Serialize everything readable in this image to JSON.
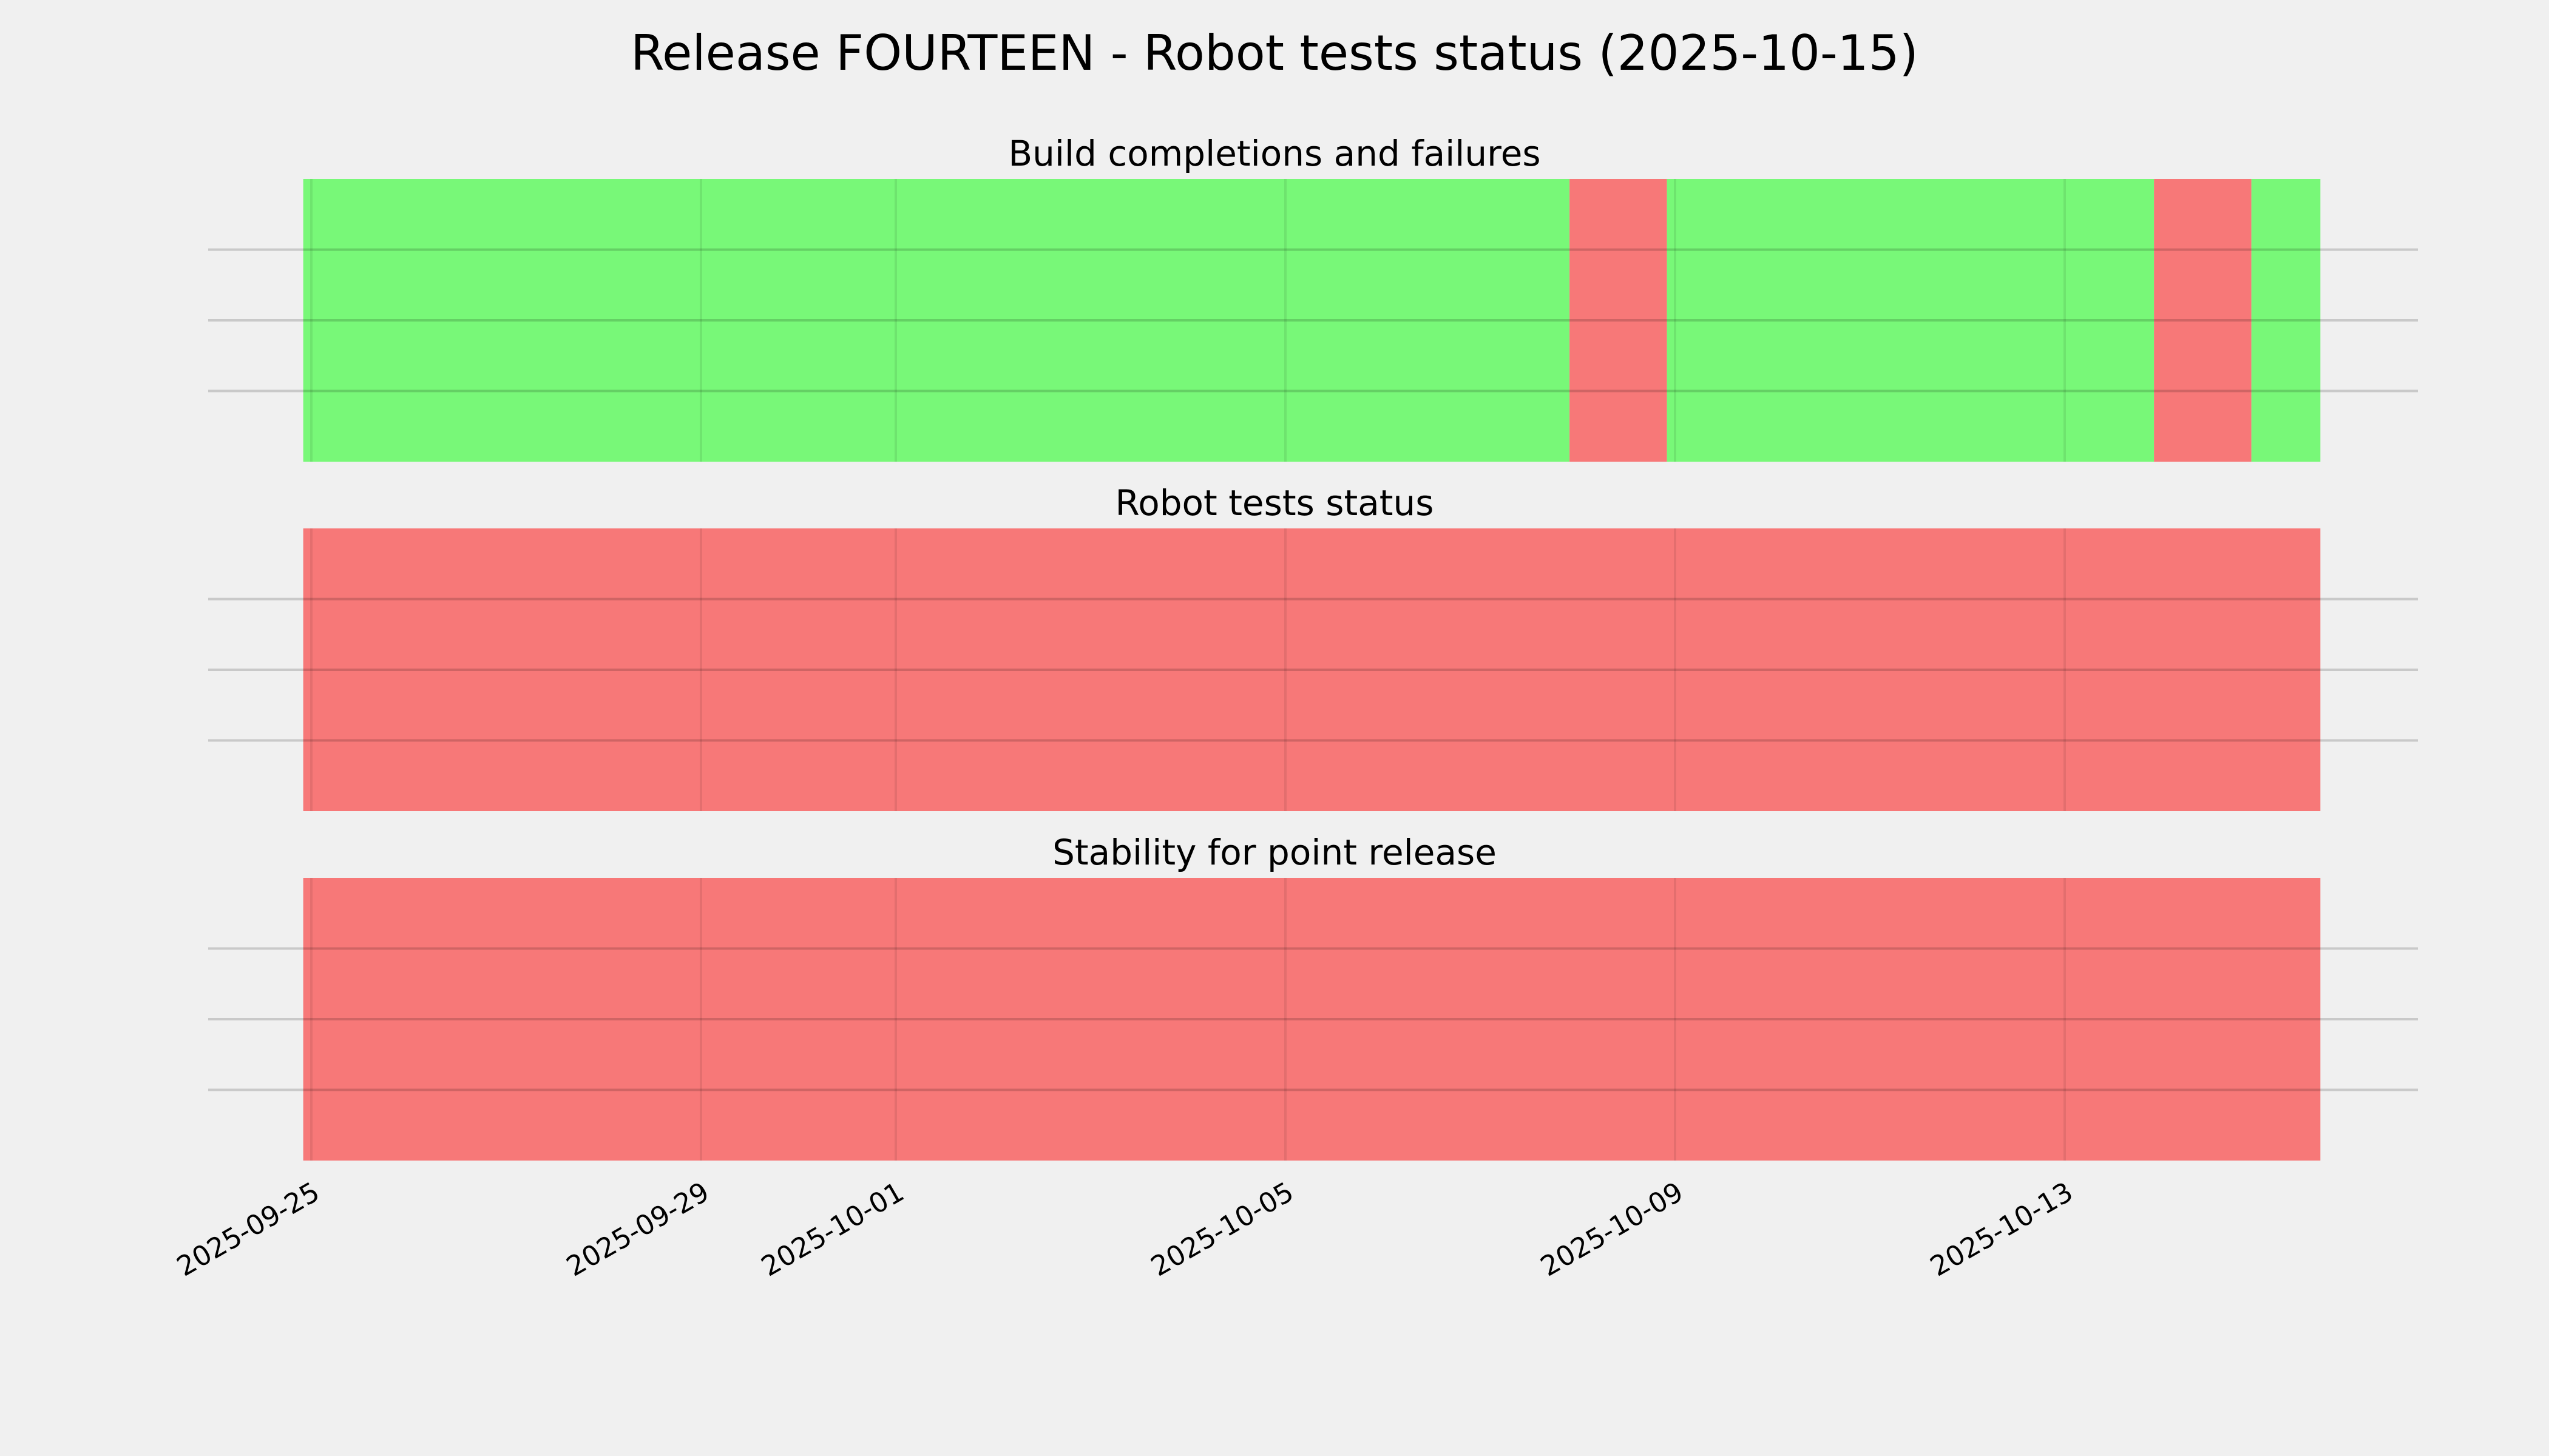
{
  "chart_data": {
    "type": "timeline",
    "title": "Release FOURTEEN - Robot tests status (2025-10-15)",
    "x_ticks": [
      "2025-09-25",
      "2025-09-29",
      "2025-10-01",
      "2025-10-05",
      "2025-10-09",
      "2025-10-13"
    ],
    "grid": true,
    "colors": {
      "pass": "#78f878",
      "fail": "#f77878",
      "background": "#f0f0f0"
    },
    "panels": [
      {
        "title": "Build completions and failures",
        "segments": [
          {
            "start": "2025-09-24T22:00",
            "end": "2025-10-07T22:00",
            "status": "pass"
          },
          {
            "start": "2025-10-07T22:00",
            "end": "2025-10-08T22:00",
            "status": "fail"
          },
          {
            "start": "2025-10-08T22:00",
            "end": "2025-10-13T22:00",
            "status": "pass"
          },
          {
            "start": "2025-10-13T22:00",
            "end": "2025-10-14T22:00",
            "status": "fail"
          },
          {
            "start": "2025-10-14T22:00",
            "end": "2025-10-15T15:00",
            "status": "pass"
          }
        ]
      },
      {
        "title": "Robot tests status",
        "segments": [
          {
            "start": "2025-09-24T22:00",
            "end": "2025-10-15T15:00",
            "status": "fail"
          }
        ]
      },
      {
        "title": "Stability for point release",
        "segments": [
          {
            "start": "2025-09-24T22:00",
            "end": "2025-10-15T15:00",
            "status": "fail"
          }
        ]
      }
    ]
  }
}
